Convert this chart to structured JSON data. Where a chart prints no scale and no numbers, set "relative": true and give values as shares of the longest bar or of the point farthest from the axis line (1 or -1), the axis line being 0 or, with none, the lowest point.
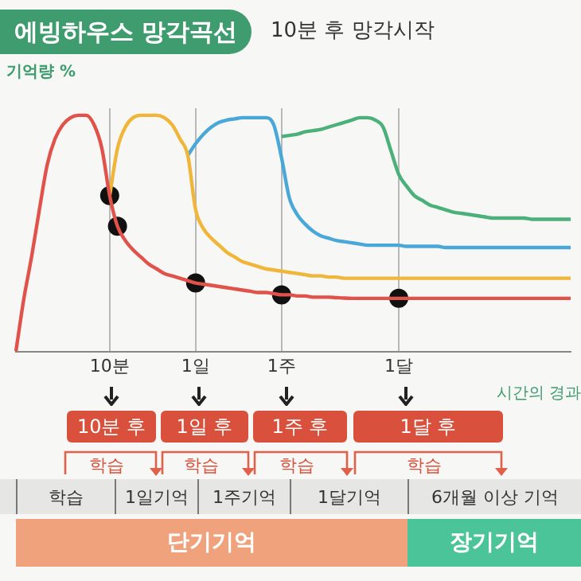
{
  "chart_data": {
    "type": "line",
    "title": "에빙하우스 망각곡선",
    "subtitle": "10분 후 망각시작",
    "ylabel": "기억량 %",
    "xlabel": "시간의 경과",
    "relative": true,
    "grid": "x",
    "legend": false,
    "marker": "none",
    "line_style": "solid",
    "categories": [
      null,
      null,
      null,
      null,
      null,
      null,
      null,
      null,
      null,
      null,
      null,
      null,
      "10분",
      null,
      null,
      null,
      null,
      null,
      null,
      null,
      null,
      null,
      null,
      "1일",
      null,
      null,
      null,
      null,
      null,
      null,
      null,
      null,
      null,
      null,
      "1주",
      null,
      null,
      null,
      null,
      null,
      null,
      null,
      null,
      null,
      null,
      null,
      null,
      null,
      null,
      "1달",
      null,
      null,
      null,
      null,
      null,
      null,
      null,
      null,
      null,
      null,
      null,
      null,
      null,
      null,
      null,
      null,
      null,
      null,
      null,
      null,
      null,
      null
    ],
    "series": [
      {
        "color": "#e0524a",
        "values": [
          0,
          0.22,
          0.4,
          0.6,
          0.79,
          0.9,
          0.96,
          0.99,
          1,
          1,
          0.96,
          0.86,
          0.66,
          0.53,
          0.47,
          0.43,
          0.4,
          0.37,
          0.35,
          0.33,
          0.32,
          0.31,
          0.3,
          0.29,
          0.285,
          0.28,
          0.275,
          0.27,
          0.265,
          0.26,
          0.255,
          0.25,
          0.25,
          0.245,
          0.24,
          0.24,
          0.235,
          0.235,
          0.23,
          0.23,
          0.23,
          0.228,
          0.226,
          0.225,
          0.225,
          0.225,
          0.225,
          0.225,
          0.225,
          0.225,
          0.225,
          0.225,
          0.225,
          0.225,
          0.225,
          0.225,
          0.225,
          0.225,
          0.225,
          0.225,
          0.225,
          0.225,
          0.225,
          0.225,
          0.225,
          0.225,
          0.225,
          0.225,
          0.225,
          0.225,
          0.225,
          0.225
        ]
      },
      {
        "color": "#f0b63a",
        "values": [
          null,
          null,
          null,
          null,
          null,
          null,
          null,
          null,
          null,
          null,
          null,
          null,
          0.66,
          0.86,
          0.95,
          0.99,
          1,
          1,
          1,
          0.99,
          0.96,
          0.9,
          0.83,
          0.6,
          0.52,
          0.48,
          0.45,
          0.42,
          0.4,
          0.38,
          0.37,
          0.36,
          0.35,
          0.345,
          0.34,
          0.335,
          0.33,
          0.325,
          0.32,
          0.32,
          0.315,
          0.315,
          0.31,
          0.31,
          0.31,
          0.31,
          0.31,
          0.31,
          0.31,
          0.31,
          0.31,
          0.31,
          0.31,
          0.31,
          0.31,
          0.31,
          0.31,
          0.31,
          0.31,
          0.31,
          0.31,
          0.31,
          0.31,
          0.31,
          0.31,
          0.31,
          0.31,
          0.31,
          0.31,
          0.31,
          0.31,
          0.31
        ]
      },
      {
        "color": "#4aa8d8",
        "values": [
          null,
          null,
          null,
          null,
          null,
          null,
          null,
          null,
          null,
          null,
          null,
          null,
          null,
          null,
          null,
          null,
          null,
          null,
          null,
          null,
          null,
          null,
          0.83,
          0.88,
          0.92,
          0.95,
          0.97,
          0.98,
          0.985,
          0.99,
          0.99,
          0.99,
          0.99,
          0.96,
          0.82,
          0.65,
          0.58,
          0.54,
          0.51,
          0.49,
          0.48,
          0.47,
          0.465,
          0.46,
          0.455,
          0.45,
          0.45,
          0.45,
          0.45,
          0.45,
          0.445,
          0.445,
          0.445,
          0.445,
          0.445,
          0.44,
          0.44,
          0.44,
          0.44,
          0.44,
          0.44,
          0.44,
          0.44,
          0.44,
          0.44,
          0.44,
          0.44,
          0.44,
          0.44,
          0.44,
          0.44,
          0.44
        ]
      },
      {
        "color": "#4cb07a",
        "values": [
          null,
          null,
          null,
          null,
          null,
          null,
          null,
          null,
          null,
          null,
          null,
          null,
          null,
          null,
          null,
          null,
          null,
          null,
          null,
          null,
          null,
          null,
          null,
          null,
          null,
          null,
          null,
          null,
          null,
          null,
          null,
          null,
          null,
          null,
          0.91,
          0.915,
          0.92,
          0.93,
          0.935,
          0.94,
          0.95,
          0.96,
          0.97,
          0.98,
          0.99,
          0.99,
          0.98,
          0.95,
          0.85,
          0.75,
          0.7,
          0.66,
          0.64,
          0.62,
          0.61,
          0.6,
          0.59,
          0.585,
          0.58,
          0.575,
          0.57,
          0.565,
          0.565,
          0.565,
          0.565,
          0.565,
          0.56,
          0.56,
          0.56,
          0.56,
          0.56,
          0.56
        ]
      },
      {
        "type": "scatter",
        "color": "#111111",
        "marker": "circle",
        "values": [
          null,
          null,
          null,
          null,
          null,
          null,
          null,
          null,
          null,
          null,
          null,
          null,
          0.66,
          0.53,
          null,
          null,
          null,
          null,
          null,
          null,
          null,
          null,
          null,
          0.29,
          null,
          null,
          null,
          null,
          null,
          null,
          null,
          null,
          null,
          null,
          0.24,
          null,
          null,
          null,
          null,
          null,
          null,
          null,
          null,
          null,
          null,
          null,
          null,
          null,
          null,
          0.225,
          null,
          null,
          null,
          null,
          null,
          null,
          null,
          null,
          null,
          null,
          null,
          null,
          null,
          null,
          null,
          null,
          null,
          null,
          null,
          null,
          null,
          null
        ]
      }
    ],
    "annotations": [
      "10분 후",
      "1일 후",
      "1주 후",
      "1달 후",
      "학습",
      "학습",
      "학습",
      "학습",
      "학습",
      "1일기억",
      "1주기억",
      "1달기억",
      "6개월 이상 기억",
      "단기기억",
      "장기기억"
    ]
  }
}
